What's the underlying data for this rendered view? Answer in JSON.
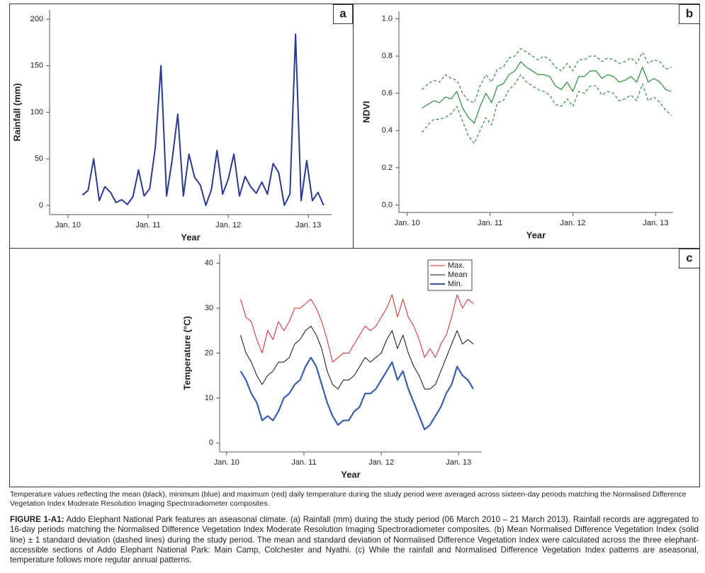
{
  "chart_data": [
    {
      "type": "line",
      "panel_label": "a",
      "x_label": "Year",
      "y_label": "Rainfall (mm)",
      "x": [
        2010.18,
        2010.25,
        2010.32,
        2010.39,
        2010.46,
        2010.53,
        2010.6,
        2010.67,
        2010.74,
        2010.81,
        2010.88,
        2010.95,
        2011.02,
        2011.09,
        2011.16,
        2011.23,
        2011.3,
        2011.37,
        2011.44,
        2011.51,
        2011.58,
        2011.65,
        2011.72,
        2011.79,
        2011.86,
        2011.93,
        2012.0,
        2012.07,
        2012.14,
        2012.21,
        2012.28,
        2012.35,
        2012.42,
        2012.49,
        2012.56,
        2012.63,
        2012.7,
        2012.77,
        2012.84,
        2012.91,
        2012.98,
        2013.05,
        2013.12,
        2013.19
      ],
      "series": [
        {
          "color": "#2b3990",
          "width": 2,
          "dashed": false,
          "values": [
            11,
            16,
            50,
            5,
            20,
            14,
            3,
            6,
            1,
            9,
            38,
            10,
            18,
            62,
            150,
            10,
            49,
            98,
            10,
            55,
            30,
            22,
            0,
            17,
            59,
            12,
            28,
            55,
            10,
            31,
            20,
            13,
            25,
            12,
            45,
            35,
            0,
            12,
            184,
            5,
            48,
            5,
            14,
            0
          ]
        }
      ],
      "xlim": [
        2009.77,
        2013.29
      ],
      "ylim": [
        -10,
        210
      ],
      "xticks": [
        {
          "value": 2010,
          "label": "Jan. 10"
        },
        {
          "value": 2011,
          "label": "Jan. 11"
        },
        {
          "value": 2012,
          "label": "Jan. 12"
        },
        {
          "value": 2013,
          "label": "Jan. 13"
        }
      ],
      "yticks": [
        0,
        50,
        100,
        150,
        200
      ]
    },
    {
      "type": "line",
      "panel_label": "b",
      "x_label": "Year",
      "y_label": "NDVI",
      "x": [
        2010.18,
        2010.25,
        2010.32,
        2010.39,
        2010.46,
        2010.53,
        2010.6,
        2010.67,
        2010.74,
        2010.81,
        2010.88,
        2010.95,
        2011.02,
        2011.09,
        2011.16,
        2011.23,
        2011.3,
        2011.37,
        2011.44,
        2011.51,
        2011.58,
        2011.65,
        2011.72,
        2011.79,
        2011.86,
        2011.93,
        2012.0,
        2012.07,
        2012.14,
        2012.21,
        2012.28,
        2012.35,
        2012.42,
        2012.49,
        2012.56,
        2012.63,
        2012.7,
        2012.77,
        2012.84,
        2012.91,
        2012.98,
        2013.05,
        2013.12,
        2013.19
      ],
      "series": [
        {
          "color": "#2e8b3e",
          "width": 1.2,
          "dashed": true,
          "values": [
            0.62,
            0.65,
            0.67,
            0.66,
            0.7,
            0.68,
            0.67,
            0.6,
            0.56,
            0.55,
            0.64,
            0.7,
            0.66,
            0.73,
            0.74,
            0.79,
            0.8,
            0.84,
            0.82,
            0.8,
            0.78,
            0.8,
            0.78,
            0.74,
            0.72,
            0.76,
            0.72,
            0.78,
            0.78,
            0.8,
            0.8,
            0.77,
            0.79,
            0.78,
            0.76,
            0.77,
            0.79,
            0.76,
            0.82,
            0.76,
            0.78,
            0.77,
            0.73,
            0.74
          ]
        },
        {
          "color": "#2e8b3e",
          "width": 1.2,
          "dashed": false,
          "values": [
            0.52,
            0.54,
            0.56,
            0.55,
            0.58,
            0.57,
            0.61,
            0.52,
            0.47,
            0.44,
            0.53,
            0.6,
            0.55,
            0.64,
            0.65,
            0.7,
            0.72,
            0.77,
            0.74,
            0.72,
            0.7,
            0.7,
            0.69,
            0.64,
            0.62,
            0.66,
            0.61,
            0.69,
            0.69,
            0.72,
            0.72,
            0.68,
            0.7,
            0.69,
            0.66,
            0.67,
            0.69,
            0.66,
            0.74,
            0.66,
            0.68,
            0.66,
            0.62,
            0.61
          ]
        },
        {
          "color": "#2e8b3e",
          "width": 1.2,
          "dashed": true,
          "values": [
            0.39,
            0.43,
            0.46,
            0.46,
            0.47,
            0.49,
            0.53,
            0.45,
            0.37,
            0.33,
            0.4,
            0.47,
            0.43,
            0.55,
            0.56,
            0.62,
            0.65,
            0.7,
            0.66,
            0.64,
            0.62,
            0.61,
            0.59,
            0.54,
            0.53,
            0.57,
            0.53,
            0.61,
            0.6,
            0.64,
            0.64,
            0.59,
            0.61,
            0.6,
            0.56,
            0.57,
            0.59,
            0.56,
            0.65,
            0.56,
            0.58,
            0.55,
            0.51,
            0.48
          ]
        }
      ],
      "xlim": [
        2009.9,
        2013.21
      ],
      "ylim": [
        -0.04,
        1.04
      ],
      "xticks": [
        {
          "value": 2010,
          "label": "Jan. 10"
        },
        {
          "value": 2011,
          "label": "Jan. 11"
        },
        {
          "value": 2012,
          "label": "Jan. 12"
        },
        {
          "value": 2013,
          "label": "Jan. 13"
        }
      ],
      "yticks": [
        {
          "value": 0,
          "label": "0.0"
        },
        0.2,
        0.4,
        0.6,
        0.8,
        {
          "value": 1,
          "label": "1.0"
        }
      ]
    },
    {
      "type": "line",
      "panel_label": "c",
      "x_label": "Year",
      "y_label": "Temperature (°C)",
      "legend": "top-right",
      "x": [
        2010.18,
        2010.25,
        2010.32,
        2010.39,
        2010.46,
        2010.53,
        2010.6,
        2010.67,
        2010.74,
        2010.81,
        2010.88,
        2010.95,
        2011.02,
        2011.09,
        2011.16,
        2011.23,
        2011.3,
        2011.37,
        2011.44,
        2011.51,
        2011.58,
        2011.65,
        2011.72,
        2011.79,
        2011.86,
        2011.93,
        2012.0,
        2012.07,
        2012.14,
        2012.21,
        2012.28,
        2012.35,
        2012.42,
        2012.49,
        2012.56,
        2012.63,
        2012.7,
        2012.77,
        2012.84,
        2012.91,
        2012.98,
        2013.05,
        2013.12,
        2013.19
      ],
      "series": [
        {
          "name": "Max.",
          "color": "#d62728",
          "width": 1,
          "dashed": false,
          "values": [
            32,
            28,
            27,
            23,
            20,
            25,
            23,
            27,
            25,
            27,
            30,
            30,
            31,
            32,
            30,
            27,
            23,
            18,
            19,
            20,
            20,
            22,
            24,
            26,
            25,
            26,
            28,
            30,
            33,
            28,
            32,
            28,
            26,
            23,
            19,
            21,
            19,
            22,
            24,
            28,
            33,
            30,
            32,
            31
          ]
        },
        {
          "name": "Mean",
          "color": "#111111",
          "width": 1,
          "dashed": false,
          "values": [
            24,
            20,
            18,
            15,
            13,
            15,
            16,
            18,
            18,
            19,
            22,
            23,
            25,
            26,
            24,
            21,
            16,
            13,
            12,
            14,
            14,
            15,
            17,
            19,
            18,
            19,
            20,
            23,
            25,
            21,
            24,
            20,
            17,
            15,
            12,
            12,
            13,
            16,
            19,
            22,
            25,
            22,
            23,
            22
          ]
        },
        {
          "name": "Min.",
          "color": "#3a5fa8",
          "width": 2.2,
          "dashed": false,
          "values": [
            16,
            14,
            11,
            9,
            5,
            6,
            5,
            7,
            10,
            11,
            13,
            14,
            17,
            19,
            17,
            13,
            9,
            6,
            4,
            5,
            5,
            7,
            8,
            11,
            11,
            12,
            14,
            16,
            18,
            14,
            16,
            12,
            9,
            6,
            3,
            4,
            6,
            8,
            11,
            13,
            17,
            15,
            14,
            12
          ]
        }
      ],
      "xlim": [
        2009.91,
        2013.3
      ],
      "ylim": [
        -2,
        42
      ],
      "xticks": [
        {
          "value": 2010,
          "label": "Jan. 10"
        },
        {
          "value": 2011,
          "label": "Jan. 11"
        },
        {
          "value": 2012,
          "label": "Jan. 12"
        },
        {
          "value": 2013,
          "label": "Jan. 13"
        }
      ],
      "yticks": [
        0,
        10,
        20,
        30,
        40
      ]
    }
  ],
  "footnote": "Temperature values reflecting the mean (black), minimum (blue) and maximum (red) daily temperature during the study period were averaged across sixteen-day periods matching the Normalised Difference Vegetation Index Moderate Resolution Imaging Spectroradiometer composites.",
  "caption": {
    "label": "FIGURE 1-A1:",
    "text": "Addo Elephant National Park features an aseasonal climate. (a) Rainfall (mm) during the study period (06 March 2010 – 21 March 2013). Rainfall records are aggregated to 16-day periods matching the Normalised Difference Vegetation Index Moderate Resolution Imaging Spectroradiometer composites. (b) Mean Normalised Difference Vegetation Index (solid line) ± 1 standard deviation (dashed lines) during the study period. The mean and standard deviation of Normalised Difference Vegetation Index were calculated across the three elephant-accessible sections of Addo Elephant National Park: Main Camp, Colchester and Nyathi. (c) While the rainfall and Normalised Difference Vegetation Index patterns are aseasonal, temperature follows more regular annual patterns."
  }
}
